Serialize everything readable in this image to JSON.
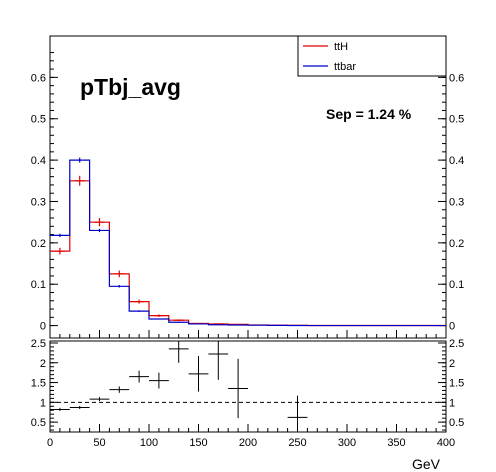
{
  "chart_data": [
    {
      "type": "histogram",
      "title": "pTbj_avg",
      "annotation": "Sep = 1.24 %",
      "xlabel": "GeV",
      "ylabel": "",
      "xlim": [
        0,
        400
      ],
      "ylim": [
        -0.03,
        0.7
      ],
      "y_ticks": [
        "0",
        "0.1",
        "0.2",
        "0.3",
        "0.4",
        "0.5",
        "0.6"
      ],
      "bin_edges": [
        0,
        20,
        40,
        60,
        80,
        100,
        120,
        140,
        160,
        180,
        200,
        220,
        240,
        260,
        400
      ],
      "legend_position": "top-right",
      "grid": false,
      "series": [
        {
          "name": "ttH",
          "color": "#e00000",
          "values": [
            0.18,
            0.35,
            0.25,
            0.125,
            0.058,
            0.024,
            0.013,
            0.005,
            0.004,
            0.003,
            0.0015,
            0.001,
            0.0005,
            0.0002
          ],
          "errors": [
            0.008,
            0.012,
            0.01,
            0.008,
            0.005,
            0.003,
            0.002,
            0.001,
            0.001,
            0.001,
            0.0005,
            0.0005,
            0.0003,
            0.0001
          ]
        },
        {
          "name": "ttbar",
          "color": "#0000c8",
          "values": [
            0.218,
            0.4,
            0.23,
            0.095,
            0.035,
            0.016,
            0.008,
            0.004,
            0.002,
            0.0015,
            0.001,
            0.0005,
            0.0003,
            0.0001
          ],
          "errors": [
            0.004,
            0.006,
            0.004,
            0.003,
            0.002,
            0.001,
            0.001,
            0.0005,
            0.0005,
            0.0003,
            0.0002,
            0.0001,
            0.0001,
            0.0001
          ]
        }
      ]
    },
    {
      "type": "scatter",
      "subtype": "ratio",
      "xlabel": "GeV",
      "xlim": [
        0,
        400
      ],
      "ylim": [
        0.25,
        2.55
      ],
      "y_ticks": [
        "0.5",
        "1",
        "1.5",
        "2",
        "2.5"
      ],
      "x_ticks": [
        "0",
        "50",
        "100",
        "150",
        "200",
        "250",
        "300",
        "350",
        "400"
      ],
      "reference_line": 1,
      "points": [
        {
          "x": 10,
          "xerr": 10,
          "y": 0.82,
          "yerr": 0.04
        },
        {
          "x": 30,
          "xerr": 10,
          "y": 0.87,
          "yerr": 0.04
        },
        {
          "x": 50,
          "xerr": 10,
          "y": 1.08,
          "yerr": 0.05
        },
        {
          "x": 70,
          "xerr": 10,
          "y": 1.32,
          "yerr": 0.08
        },
        {
          "x": 90,
          "xerr": 10,
          "y": 1.65,
          "yerr": 0.15
        },
        {
          "x": 110,
          "xerr": 10,
          "y": 1.55,
          "yerr": 0.2
        },
        {
          "x": 130,
          "xerr": 10,
          "y": 2.35,
          "yerr": 0.35
        },
        {
          "x": 150,
          "xerr": 10,
          "y": 1.72,
          "yerr": 0.45
        },
        {
          "x": 170,
          "xerr": 10,
          "y": 2.22,
          "yerr": 0.65
        },
        {
          "x": 190,
          "xerr": 10,
          "y": 1.35,
          "yerr": 0.75
        },
        {
          "x": 250,
          "xerr": 10,
          "y": 0.62,
          "yerr": 0.55
        }
      ]
    }
  ]
}
